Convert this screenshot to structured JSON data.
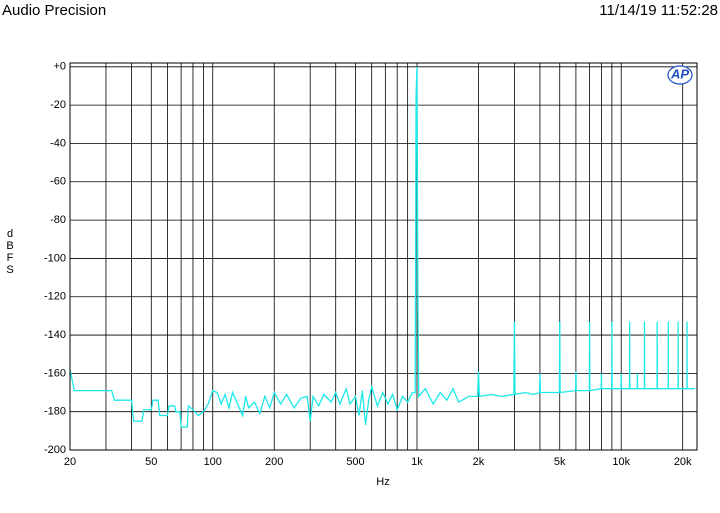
{
  "chart_data": {
    "type": "line",
    "title": "Audio Precision",
    "subtitle": "11/14/19 11:52:28",
    "xlabel": "Hz",
    "ylabel": "dBFS",
    "logo": "AP",
    "xscale": "log",
    "grid": true,
    "xlim": [
      20,
      23500
    ],
    "ylim": [
      -200,
      2
    ],
    "xticks": [
      20,
      50,
      100,
      200,
      500,
      {
        "value": 1000,
        "label": "1k"
      },
      {
        "value": 2000,
        "label": "2k"
      },
      {
        "value": 5000,
        "label": "5k"
      },
      {
        "value": 10000,
        "label": "10k"
      },
      {
        "value": 20000,
        "label": "20k"
      }
    ],
    "xminor": [
      30,
      40,
      60,
      70,
      80,
      90,
      300,
      400,
      600,
      700,
      800,
      900,
      3000,
      4000,
      6000,
      7000,
      8000,
      9000
    ],
    "yticks": [
      -200,
      -180,
      -160,
      -140,
      -120,
      -100,
      -80,
      -60,
      -40,
      -20,
      {
        "value": 0,
        "label": "+0"
      }
    ],
    "x": [
      20,
      21,
      25,
      32,
      33,
      40,
      41,
      45,
      46,
      50,
      51,
      54,
      55,
      60,
      61,
      65,
      66,
      69,
      70,
      75,
      76,
      80,
      85,
      90,
      95,
      100,
      105,
      110,
      115,
      120,
      125,
      130,
      140,
      145,
      150,
      160,
      170,
      180,
      190,
      200,
      215,
      230,
      250,
      270,
      290,
      300,
      310,
      330,
      350,
      380,
      400,
      420,
      450,
      470,
      500,
      520,
      540,
      560,
      580,
      600,
      640,
      680,
      720,
      760,
      800,
      850,
      900,
      950,
      980,
      990,
      1000,
      1010,
      1020,
      1100,
      1200,
      1300,
      1400,
      1500,
      1600,
      1800,
      1980,
      2000,
      2020,
      2300,
      2600,
      2980,
      3000,
      3020,
      3400,
      3700,
      3980,
      4000,
      4020,
      4600,
      4980,
      5000,
      5020,
      5980,
      6000,
      6020,
      6980,
      7000,
      7020,
      7980,
      8000,
      8020,
      8980,
      9000,
      9020,
      9980,
      10000,
      10020,
      10980,
      11000,
      11020,
      11980,
      12000,
      12020,
      12980,
      13000,
      13020,
      14980,
      15000,
      15020,
      16980,
      17000,
      17020,
      18980,
      19000,
      19020,
      20980,
      21000,
      21020,
      23000
    ],
    "series": [
      {
        "name": "FFT",
        "color": "#1ee8e8",
        "values": [
          -158,
          -169,
          -169,
          -169,
          -174,
          -174,
          -185,
          -185,
          -179,
          -179,
          -174,
          -174,
          -182,
          -182,
          -177,
          -177,
          -180,
          -180,
          -188,
          -188,
          -177,
          -179,
          -182,
          -180,
          -176,
          -169,
          -170,
          -176,
          -171,
          -178,
          -170,
          -174,
          -182,
          -172,
          -178,
          -175,
          -181,
          -172,
          -178,
          -170,
          -176,
          -171,
          -178,
          -173,
          -172,
          -185,
          -172,
          -177,
          -171,
          -175,
          -170,
          -176,
          -168,
          -176,
          -172,
          -182,
          -169,
          -187,
          -174,
          -167,
          -177,
          -170,
          -176,
          -171,
          -179,
          -172,
          -175,
          -170,
          -170,
          -15,
          0,
          -120,
          -172,
          -168,
          -176,
          -170,
          -174,
          -168,
          -175,
          -172,
          -172,
          -159,
          -172,
          -171,
          -172,
          -171,
          -133,
          -171,
          -170,
          -171,
          -170,
          -160,
          -170,
          -170,
          -170,
          -133,
          -170,
          -169,
          -159,
          -169,
          -169,
          -133,
          -169,
          -168,
          -160,
          -168,
          -168,
          -133,
          -168,
          -168,
          -160,
          -168,
          -168,
          -133,
          -168,
          -168,
          -160,
          -168,
          -168,
          -133,
          -168,
          -168,
          -133,
          -168,
          -168,
          -133,
          -168,
          -168,
          -133,
          -168,
          -168,
          -133,
          -168,
          -168
        ]
      }
    ]
  }
}
